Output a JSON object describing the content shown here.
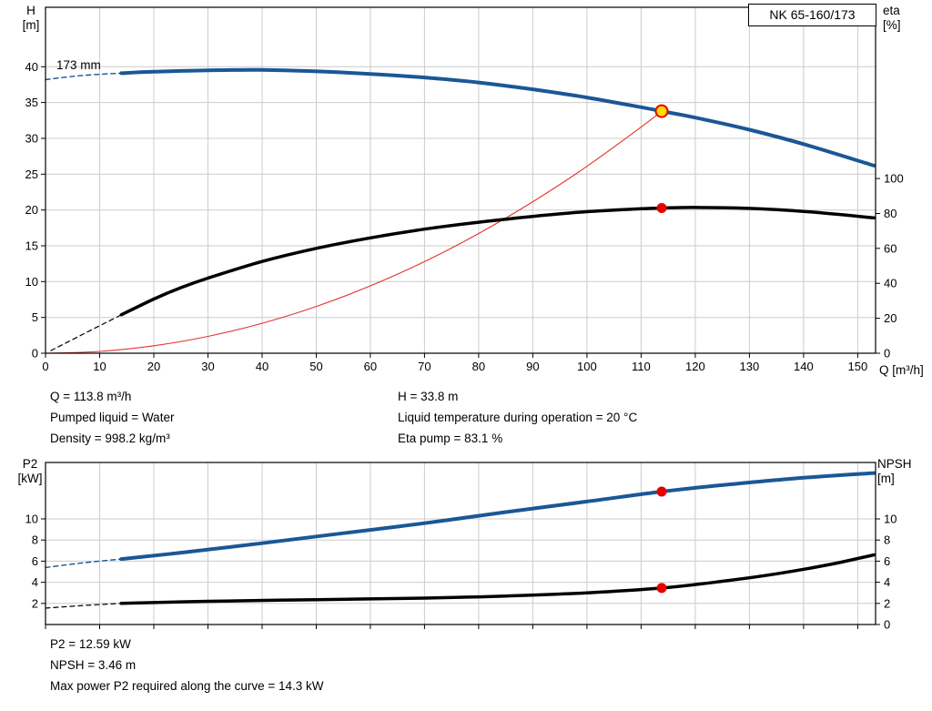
{
  "title_box": "NK 65-160/173",
  "impeller_label": "173 mm",
  "axis_labels": {
    "h": [
      "H",
      "[m]"
    ],
    "eta": [
      "eta",
      "[%]"
    ],
    "q": "Q [m³/h]",
    "p2": [
      "P2",
      "[kW]"
    ],
    "npsh": [
      "NPSH",
      "[m]"
    ]
  },
  "info_top": {
    "left": [
      "Q = 113.8 m³/h",
      "Pumped liquid = Water",
      "Density = 998.2 kg/m³"
    ],
    "right": [
      "H = 33.8 m",
      "Liquid temperature during operation = 20 °C",
      "Eta pump = 83.1 %"
    ]
  },
  "info_bottom": [
    "P2 = 12.59 kW",
    "NPSH = 3.46 m",
    "Max power P2 required along the curve = 14.3 kW"
  ],
  "colors": {
    "curve_blue": "#1a5796",
    "curve_black": "#000000",
    "system_red": "#e2342b",
    "marker_red": "#e60000",
    "marker_yellow": "#ffdd00",
    "grid": "#cccccc",
    "frame": "#000000"
  },
  "chart_data": [
    {
      "type": "line",
      "name": "qh-eta-chart",
      "title": "NK 65-160/173",
      "xlabel": "Q [m³/h]",
      "x_range": [
        0,
        153.3
      ],
      "x_ticks": [
        0,
        10,
        20,
        30,
        40,
        50,
        60,
        70,
        80,
        90,
        100,
        110,
        120,
        130,
        140,
        150
      ],
      "x_tick_labels": true,
      "y_left": {
        "label": "H [m]",
        "range": [
          0,
          48.3
        ],
        "ticks": [
          0,
          5,
          10,
          15,
          20,
          25,
          30,
          35,
          40
        ]
      },
      "y_right": {
        "label": "eta [%]",
        "range": [
          0,
          198
        ],
        "ticks": [
          0,
          20,
          40,
          60,
          80,
          100
        ]
      },
      "series": [
        {
          "name": "system-curve",
          "axis": "left",
          "color": "#e2342b",
          "width": 1.1,
          "points": [
            [
              0,
              0
            ],
            [
              10,
              0.26
            ],
            [
              20,
              1.04
            ],
            [
              30,
              2.35
            ],
            [
              40,
              4.18
            ],
            [
              50,
              6.53
            ],
            [
              60,
              9.4
            ],
            [
              70,
              12.79
            ],
            [
              80,
              16.71
            ],
            [
              90,
              21.15
            ],
            [
              100,
              26.1
            ],
            [
              110,
              31.57
            ],
            [
              113.8,
              33.8
            ]
          ]
        },
        {
          "name": "head-curve-extrapolated",
          "axis": "left",
          "color": "#1a5796",
          "width": 1.4,
          "dash": "5,4",
          "points": [
            [
              0,
              38.2
            ],
            [
              5,
              38.65
            ],
            [
              10,
              38.95
            ],
            [
              14,
              39.1
            ]
          ]
        },
        {
          "name": "head-curve",
          "axis": "left",
          "color": "#1a5796",
          "width": 4,
          "points": [
            [
              14,
              39.1
            ],
            [
              20,
              39.3
            ],
            [
              30,
              39.5
            ],
            [
              40,
              39.55
            ],
            [
              50,
              39.35
            ],
            [
              60,
              39.0
            ],
            [
              70,
              38.5
            ],
            [
              80,
              37.8
            ],
            [
              90,
              36.85
            ],
            [
              100,
              35.7
            ],
            [
              110,
              34.35
            ],
            [
              113.8,
              33.8
            ],
            [
              120,
              32.9
            ],
            [
              130,
              31.2
            ],
            [
              140,
              29.2
            ],
            [
              153,
              26.2
            ]
          ]
        },
        {
          "name": "eta-curve-extrapolated",
          "axis": "right",
          "color": "#000000",
          "width": 1.2,
          "dash": "5,4",
          "points": [
            [
              1,
              1.5
            ],
            [
              7,
              11
            ],
            [
              14,
              22
            ]
          ]
        },
        {
          "name": "eta-curve",
          "axis": "right",
          "color": "#000000",
          "width": 3.5,
          "points": [
            [
              14,
              22
            ],
            [
              20,
              31
            ],
            [
              25,
              37.5
            ],
            [
              30,
              43
            ],
            [
              40,
              52.5
            ],
            [
              50,
              60
            ],
            [
              60,
              66
            ],
            [
              70,
              71
            ],
            [
              80,
              75
            ],
            [
              90,
              78.3
            ],
            [
              100,
              81
            ],
            [
              110,
              82.7
            ],
            [
              113.8,
              83.1
            ],
            [
              120,
              83.4
            ],
            [
              130,
              82.9
            ],
            [
              140,
              81.2
            ],
            [
              153,
              77.5
            ]
          ]
        }
      ],
      "markers": [
        {
          "name": "duty-point-eta",
          "axis": "right",
          "x": 113.8,
          "y": 83.1,
          "r": 5.5,
          "fill": "#e60000"
        },
        {
          "name": "duty-point-head",
          "axis": "left",
          "x": 113.8,
          "y": 33.8,
          "r": 6.5,
          "fill": "#ffdd00",
          "stroke": "#e60000",
          "stroke_width": 2
        }
      ]
    },
    {
      "type": "line",
      "name": "p2-npsh-chart",
      "title": "",
      "xlabel": "",
      "x_range": [
        0,
        153.3
      ],
      "x_ticks": [
        0,
        10,
        20,
        30,
        40,
        50,
        60,
        70,
        80,
        90,
        100,
        110,
        120,
        130,
        140,
        150
      ],
      "x_tick_labels": false,
      "y_left": {
        "label": "P2 [kW]",
        "range": [
          0,
          15.35
        ],
        "ticks": [
          2,
          4,
          6,
          8,
          10
        ]
      },
      "y_right": {
        "label": "NPSH [m]",
        "range": [
          0,
          15.35
        ],
        "ticks": [
          0,
          2,
          4,
          6,
          8,
          10
        ]
      },
      "series": [
        {
          "name": "p2-curve-extrapolated",
          "axis": "left",
          "color": "#1a5796",
          "width": 1.4,
          "dash": "5,4",
          "points": [
            [
              0,
              5.4
            ],
            [
              7,
              5.85
            ],
            [
              14,
              6.2
            ]
          ]
        },
        {
          "name": "p2-curve",
          "axis": "left",
          "color": "#1a5796",
          "width": 4,
          "points": [
            [
              14,
              6.2
            ],
            [
              25,
              6.8
            ],
            [
              40,
              7.7
            ],
            [
              55,
              8.65
            ],
            [
              70,
              9.6
            ],
            [
              85,
              10.65
            ],
            [
              100,
              11.65
            ],
            [
              113.8,
              12.59
            ],
            [
              125,
              13.2
            ],
            [
              140,
              13.9
            ],
            [
              153,
              14.35
            ]
          ]
        },
        {
          "name": "npsh-curve-extrapolated",
          "axis": "right",
          "color": "#000000",
          "width": 1.2,
          "dash": "5,4",
          "points": [
            [
              0,
              1.55
            ],
            [
              7,
              1.8
            ],
            [
              14,
              2.0
            ]
          ]
        },
        {
          "name": "npsh-curve",
          "axis": "right",
          "color": "#000000",
          "width": 3.5,
          "points": [
            [
              14,
              2.0
            ],
            [
              30,
              2.2
            ],
            [
              50,
              2.35
            ],
            [
              70,
              2.5
            ],
            [
              85,
              2.7
            ],
            [
              100,
              3.0
            ],
            [
              113.8,
              3.46
            ],
            [
              125,
              4.1
            ],
            [
              135,
              4.8
            ],
            [
              145,
              5.7
            ],
            [
              153,
              6.6
            ]
          ]
        }
      ],
      "markers": [
        {
          "name": "duty-point-p2",
          "axis": "left",
          "x": 113.8,
          "y": 12.59,
          "r": 5.5,
          "fill": "#e60000"
        },
        {
          "name": "duty-point-npsh",
          "axis": "right",
          "x": 113.8,
          "y": 3.46,
          "r": 5.5,
          "fill": "#e60000"
        }
      ]
    }
  ]
}
